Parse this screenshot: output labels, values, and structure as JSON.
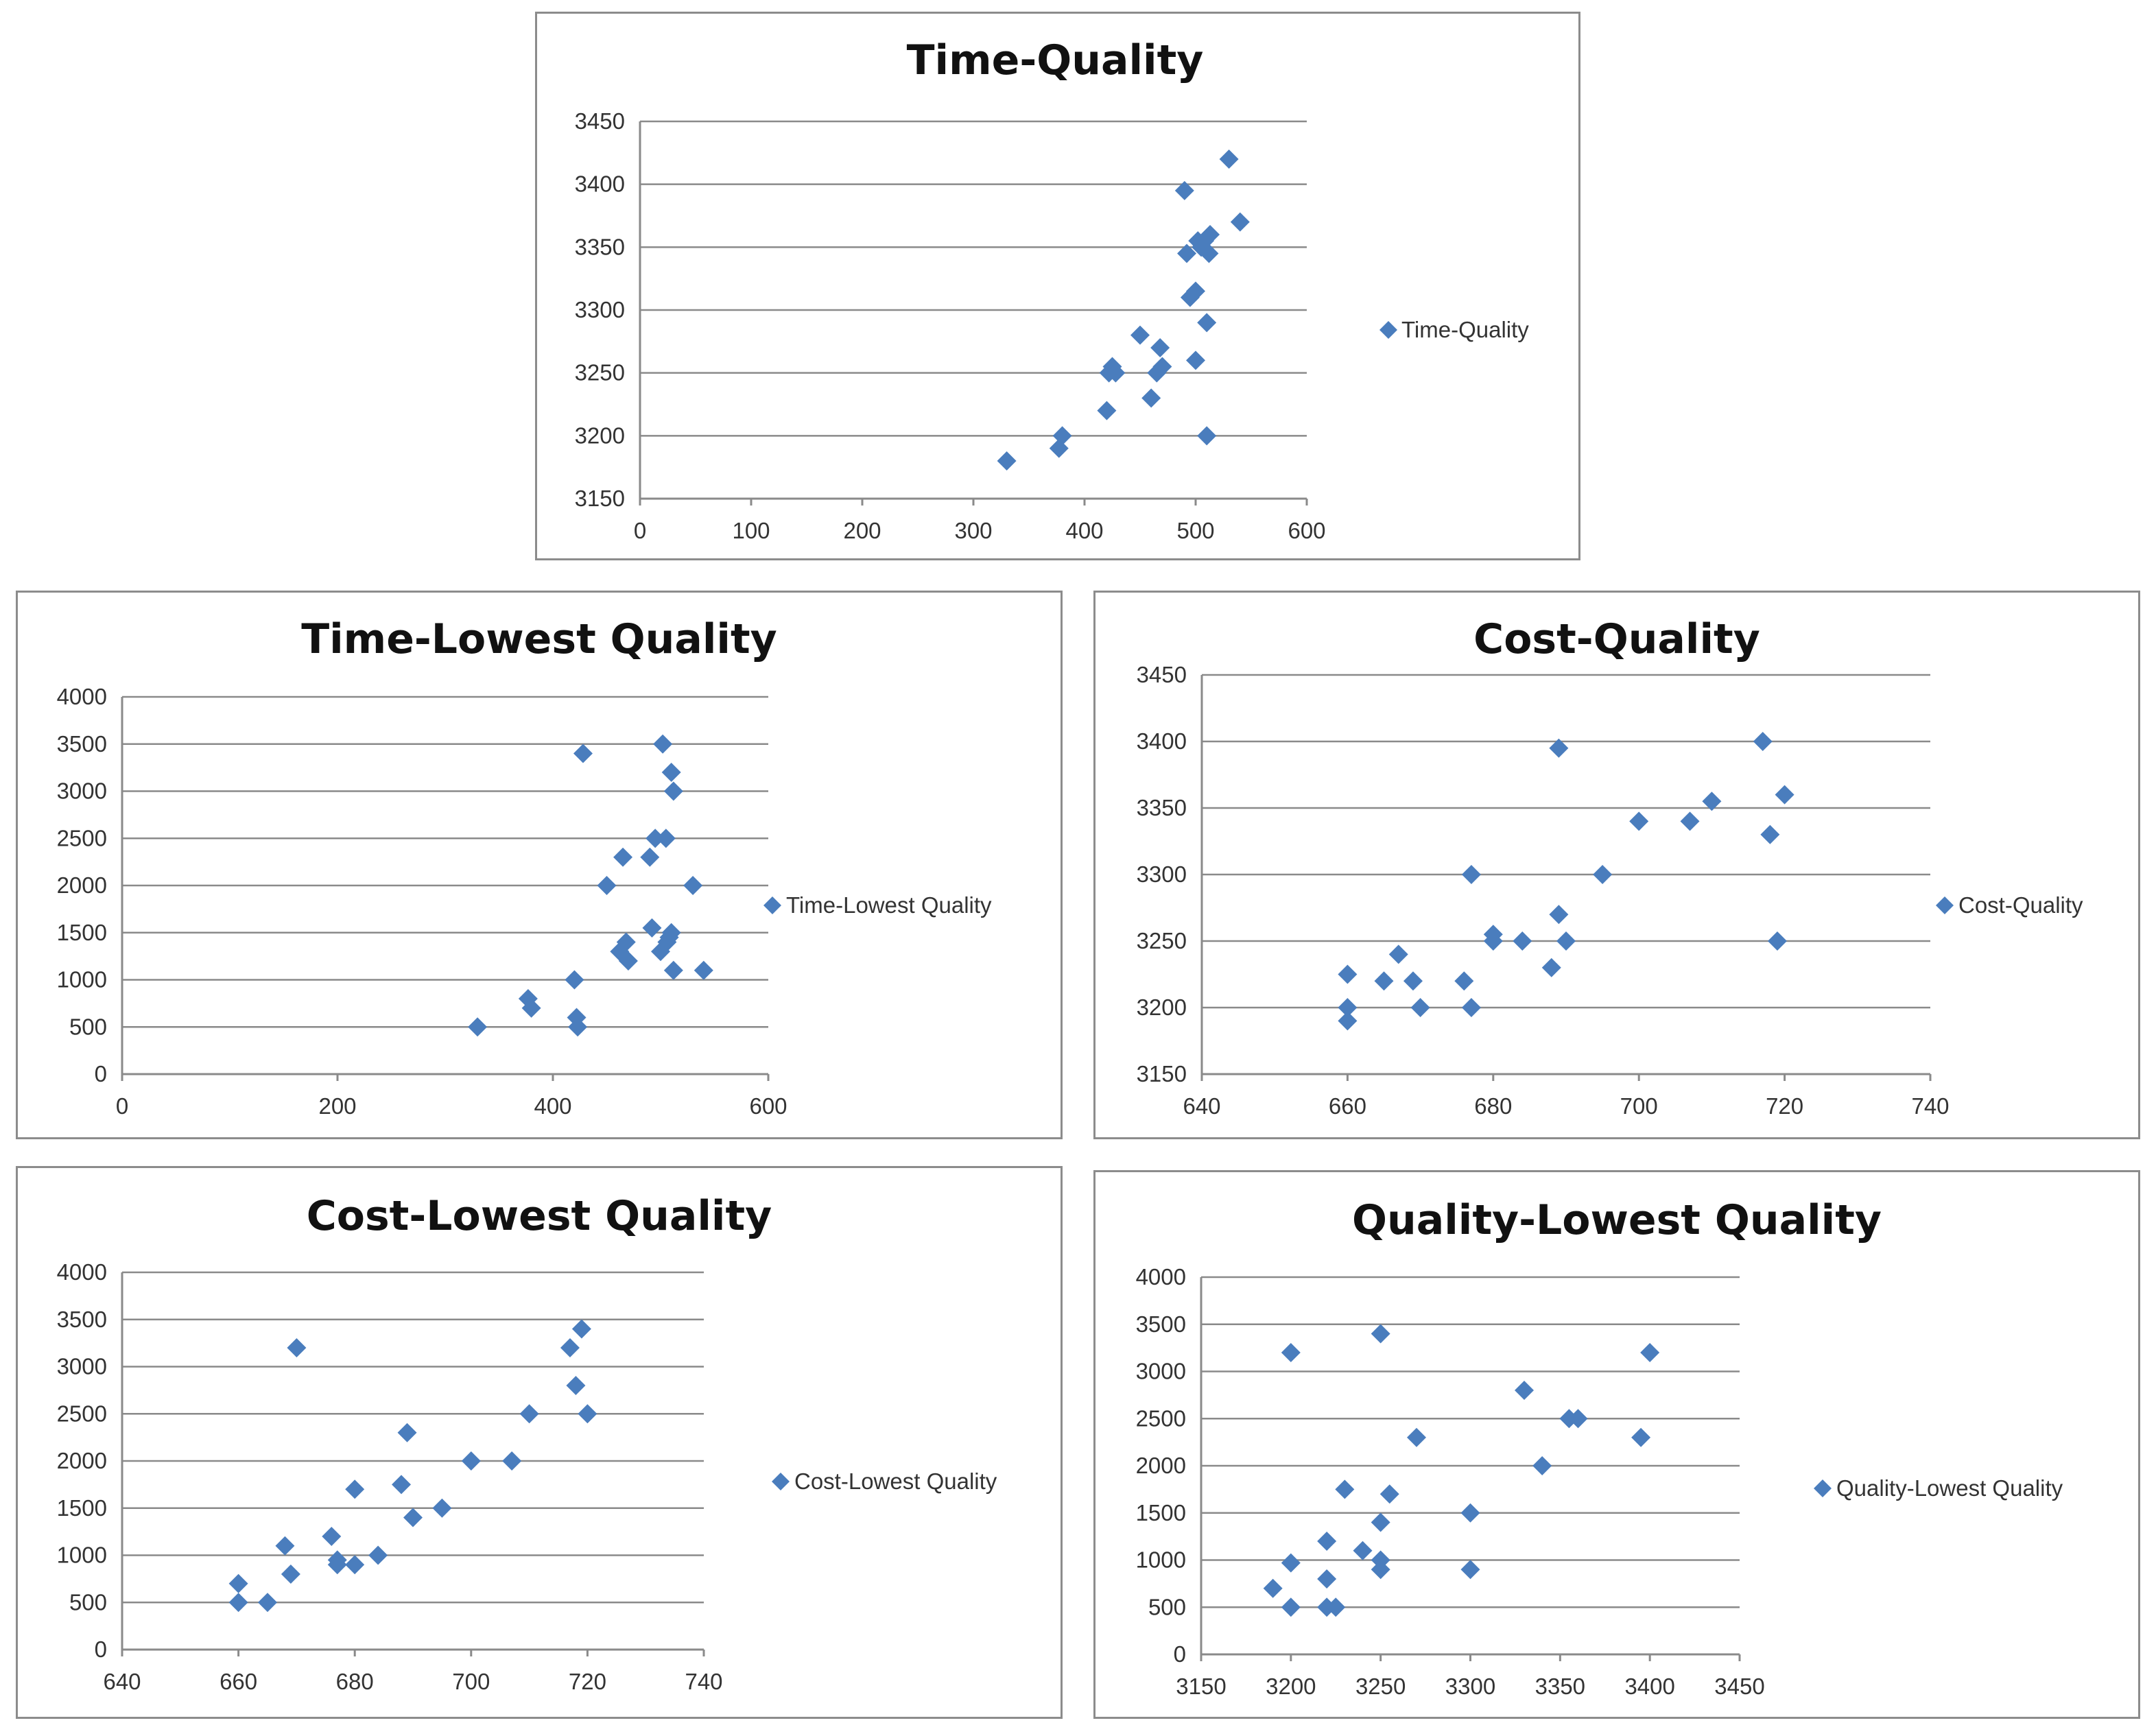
{
  "colors": {
    "marker": "#4a7dbd",
    "grid": "#8a8a8a",
    "border": "#8c8c8c"
  },
  "chart_data": [
    {
      "id": "time-quality",
      "type": "scatter",
      "title": "Time-Quality",
      "legend": "Time-Quality",
      "legend_position": "right",
      "xlim": [
        0,
        600
      ],
      "xticks": [
        0,
        100,
        200,
        300,
        400,
        500,
        600
      ],
      "ylim": [
        3150,
        3450
      ],
      "yticks": [
        3150,
        3200,
        3250,
        3300,
        3350,
        3400,
        3450
      ],
      "points": [
        [
          330,
          3180
        ],
        [
          377,
          3190
        ],
        [
          380,
          3200
        ],
        [
          420,
          3220
        ],
        [
          422,
          3250
        ],
        [
          425,
          3255
        ],
        [
          428,
          3250
        ],
        [
          450,
          3280
        ],
        [
          460,
          3230
        ],
        [
          465,
          3250
        ],
        [
          468,
          3270
        ],
        [
          470,
          3255
        ],
        [
          490,
          3395
        ],
        [
          492,
          3345
        ],
        [
          495,
          3310
        ],
        [
          500,
          3315
        ],
        [
          500,
          3260
        ],
        [
          502,
          3355
        ],
        [
          505,
          3350
        ],
        [
          508,
          3355
        ],
        [
          510,
          3290
        ],
        [
          510,
          3200
        ],
        [
          512,
          3345
        ],
        [
          513,
          3360
        ],
        [
          530,
          3420
        ],
        [
          540,
          3370
        ]
      ]
    },
    {
      "id": "time-lowest-quality",
      "type": "scatter",
      "title": "Time-Lowest Quality",
      "legend": "Time-Lowest Quality",
      "legend_position": "right",
      "xlim": [
        0,
        600
      ],
      "xticks": [
        0,
        200,
        400,
        600
      ],
      "ylim": [
        0,
        4000
      ],
      "yticks": [
        0,
        500,
        1000,
        1500,
        2000,
        2500,
        3000,
        3500,
        4000
      ],
      "points": [
        [
          330,
          500
        ],
        [
          377,
          800
        ],
        [
          380,
          700
        ],
        [
          420,
          1000
        ],
        [
          422,
          600
        ],
        [
          423,
          500
        ],
        [
          428,
          3400
        ],
        [
          450,
          2000
        ],
        [
          462,
          1300
        ],
        [
          465,
          2300
        ],
        [
          468,
          1400
        ],
        [
          470,
          1200
        ],
        [
          490,
          2300
        ],
        [
          492,
          1550
        ],
        [
          495,
          2500
        ],
        [
          500,
          1300
        ],
        [
          502,
          3500
        ],
        [
          505,
          2500
        ],
        [
          506,
          1400
        ],
        [
          508,
          1450
        ],
        [
          510,
          3200
        ],
        [
          510,
          1500
        ],
        [
          512,
          3000
        ],
        [
          512,
          1100
        ],
        [
          530,
          2000
        ],
        [
          540,
          1100
        ]
      ]
    },
    {
      "id": "cost-quality",
      "type": "scatter",
      "title": "Cost-Quality",
      "legend": "Cost-Quality",
      "legend_position": "right",
      "xlim": [
        640,
        740
      ],
      "xticks": [
        640,
        660,
        680,
        700,
        720,
        740
      ],
      "ylim": [
        3150,
        3450
      ],
      "yticks": [
        3150,
        3200,
        3250,
        3300,
        3350,
        3400,
        3450
      ],
      "points": [
        [
          660,
          3225
        ],
        [
          660,
          3200
        ],
        [
          660,
          3190
        ],
        [
          665,
          3220
        ],
        [
          667,
          3240
        ],
        [
          669,
          3220
        ],
        [
          670,
          3200
        ],
        [
          676,
          3220
        ],
        [
          677,
          3300
        ],
        [
          677,
          3200
        ],
        [
          680,
          3255
        ],
        [
          680,
          3250
        ],
        [
          684,
          3250
        ],
        [
          688,
          3230
        ],
        [
          689,
          3395
        ],
        [
          689,
          3270
        ],
        [
          690,
          3250
        ],
        [
          695,
          3300
        ],
        [
          700,
          3340
        ],
        [
          707,
          3340
        ],
        [
          710,
          3355
        ],
        [
          717,
          3400
        ],
        [
          718,
          3330
        ],
        [
          719,
          3250
        ],
        [
          720,
          3360
        ]
      ]
    },
    {
      "id": "cost-lowest-quality",
      "type": "scatter",
      "title": "Cost-Lowest Quality",
      "legend": "Cost-Lowest Quality",
      "legend_position": "right",
      "xlim": [
        640,
        740
      ],
      "xticks": [
        640,
        660,
        680,
        700,
        720,
        740
      ],
      "ylim": [
        0,
        4000
      ],
      "yticks": [
        0,
        500,
        1000,
        1500,
        2000,
        2500,
        3000,
        3500,
        4000
      ],
      "points": [
        [
          660,
          700
        ],
        [
          660,
          500
        ],
        [
          665,
          500
        ],
        [
          668,
          1100
        ],
        [
          669,
          800
        ],
        [
          670,
          3200
        ],
        [
          676,
          1200
        ],
        [
          677,
          950
        ],
        [
          677,
          900
        ],
        [
          680,
          900
        ],
        [
          680,
          1700
        ],
        [
          684,
          1000
        ],
        [
          688,
          1750
        ],
        [
          689,
          2300
        ],
        [
          690,
          1400
        ],
        [
          695,
          1500
        ],
        [
          700,
          2000
        ],
        [
          707,
          2000
        ],
        [
          710,
          2500
        ],
        [
          717,
          3200
        ],
        [
          718,
          2800
        ],
        [
          719,
          3400
        ],
        [
          720,
          2500
        ]
      ]
    },
    {
      "id": "quality-lowest-quality",
      "type": "scatter",
      "title": "Quality-Lowest Quality",
      "legend": "Quality-Lowest Quality",
      "legend_position": "right",
      "xlim": [
        3150,
        3450
      ],
      "xticks": [
        3150,
        3200,
        3250,
        3300,
        3350,
        3400,
        3450
      ],
      "ylim": [
        0,
        4000
      ],
      "yticks": [
        0,
        500,
        1000,
        1500,
        2000,
        2500,
        3000,
        3500,
        4000
      ],
      "points": [
        [
          3190,
          700
        ],
        [
          3200,
          3200
        ],
        [
          3200,
          970
        ],
        [
          3200,
          500
        ],
        [
          3220,
          1200
        ],
        [
          3220,
          800
        ],
        [
          3220,
          500
        ],
        [
          3225,
          500
        ],
        [
          3230,
          1750
        ],
        [
          3240,
          1100
        ],
        [
          3250,
          3400
        ],
        [
          3250,
          1400
        ],
        [
          3250,
          1000
        ],
        [
          3250,
          900
        ],
        [
          3255,
          1700
        ],
        [
          3270,
          2300
        ],
        [
          3300,
          1500
        ],
        [
          3300,
          900
        ],
        [
          3330,
          2800
        ],
        [
          3340,
          2000
        ],
        [
          3355,
          2500
        ],
        [
          3360,
          2500
        ],
        [
          3395,
          2300
        ],
        [
          3400,
          3200
        ]
      ]
    }
  ]
}
